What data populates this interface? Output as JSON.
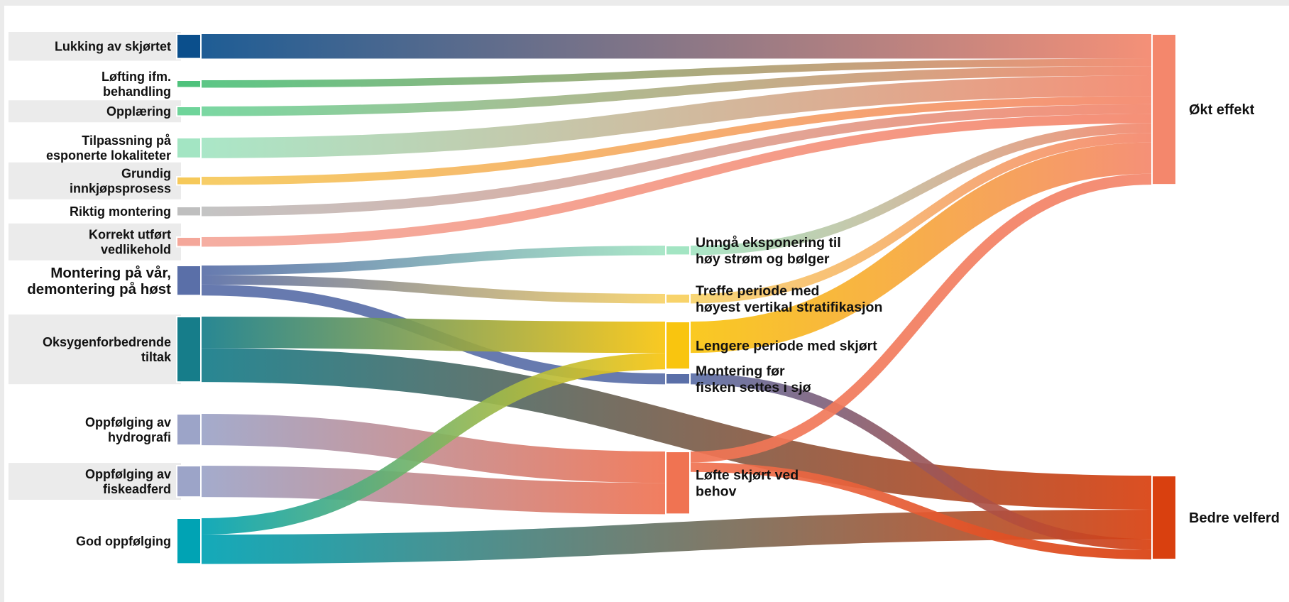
{
  "chart_data": {
    "type": "sankey",
    "title": "",
    "colors": {
      "lukking": "#0b4f8c",
      "lofting": "#4fc27c",
      "opplaering": "#6fd49a",
      "tilpassning": "#a3e5c3",
      "innkjop": "#f6c95a",
      "riktig": "#bfbfbf",
      "korrekt": "#f4a79a",
      "montering_var": "#5a6fa8",
      "oksygen": "#167d8a",
      "hydrografi": "#9ca4c8",
      "fiskeadferd": "#9ca4c8",
      "god": "#00a3b4",
      "unnga": "#a3e5c3",
      "treffe": "#f8d36a",
      "lengere": "#f9c50f",
      "montering_for": "#5a6fa8",
      "lofte": "#f07352",
      "okt": "#f4876c",
      "velferd": "#d9400f",
      "label_band": "#ebebeb",
      "node_stroke": "#ffffff"
    },
    "nodes": [
      {
        "id": "lukking",
        "label_lines": [
          "Lukking av skjørtet"
        ],
        "column": 0,
        "band": true
      },
      {
        "id": "lofting",
        "label_lines": [
          "Løfting ifm.",
          "behandling"
        ],
        "column": 0,
        "band": false
      },
      {
        "id": "opplaering",
        "label_lines": [
          "Opplæring"
        ],
        "column": 0,
        "band": true
      },
      {
        "id": "tilpassning",
        "label_lines": [
          "Tilpassning på",
          "esponerte lokaliteter"
        ],
        "column": 0,
        "band": false
      },
      {
        "id": "innkjop",
        "label_lines": [
          "Grundig",
          "innkjøpsprosess"
        ],
        "column": 0,
        "band": true
      },
      {
        "id": "riktig",
        "label_lines": [
          "Riktig montering"
        ],
        "column": 0,
        "band": false
      },
      {
        "id": "korrekt",
        "label_lines": [
          "Korrekt utført",
          "vedlikehold"
        ],
        "column": 0,
        "band": true
      },
      {
        "id": "montering_var",
        "label_lines": [
          "Montering på vår,",
          "demontering på høst"
        ],
        "column": 0,
        "band": false,
        "large": true
      },
      {
        "id": "oksygen",
        "label_lines": [
          "Oksygenforbedrende",
          "tiltak"
        ],
        "column": 0,
        "band": true
      },
      {
        "id": "hydrografi",
        "label_lines": [
          "Oppfølging av",
          "hydrografi"
        ],
        "column": 0,
        "band": false
      },
      {
        "id": "fiskeadferd",
        "label_lines": [
          "Oppfølging av",
          "fiskeadferd"
        ],
        "column": 0,
        "band": true
      },
      {
        "id": "god",
        "label_lines": [
          "God oppfølging"
        ],
        "column": 0,
        "band": false
      },
      {
        "id": "unnga",
        "label_lines": [
          "Unngå eksponering til",
          "høy strøm og bølger"
        ],
        "column": 1
      },
      {
        "id": "treffe",
        "label_lines": [
          "Treffe periode med",
          "høyest vertikal stratifikasjon"
        ],
        "column": 1
      },
      {
        "id": "lengere",
        "label_lines": [
          "Lengere periode med skjørt"
        ],
        "column": 1
      },
      {
        "id": "montering_for",
        "label_lines": [
          "Montering før",
          "fisken settes i sjø"
        ],
        "column": 1
      },
      {
        "id": "lofte",
        "label_lines": [
          "Løfte skjørt ved",
          "behov"
        ],
        "column": 1
      },
      {
        "id": "okt",
        "label_lines": [
          "Økt effekt"
        ],
        "column": 2
      },
      {
        "id": "velferd",
        "label_lines": [
          "Bedre velferd"
        ],
        "column": 2
      }
    ],
    "links": [
      {
        "source": "lukking",
        "target": "okt",
        "value": 3.6
      },
      {
        "source": "lofting",
        "target": "okt",
        "value": 1.1
      },
      {
        "source": "opplaering",
        "target": "okt",
        "value": 1.4
      },
      {
        "source": "tilpassning",
        "target": "okt",
        "value": 3.0
      },
      {
        "source": "innkjop",
        "target": "okt",
        "value": 1.2
      },
      {
        "source": "riktig",
        "target": "okt",
        "value": 1.4
      },
      {
        "source": "korrekt",
        "target": "okt",
        "value": 1.4
      },
      {
        "source": "montering_var",
        "target": "unnga",
        "value": 1.4
      },
      {
        "source": "montering_var",
        "target": "treffe",
        "value": 1.4
      },
      {
        "source": "montering_var",
        "target": "montering_for",
        "value": 1.6
      },
      {
        "source": "oksygen",
        "target": "lengere",
        "value": 4.6
      },
      {
        "source": "oksygen",
        "target": "velferd",
        "value": 5.0
      },
      {
        "source": "hydrografi",
        "target": "lofte",
        "value": 4.6
      },
      {
        "source": "fiskeadferd",
        "target": "lofte",
        "value": 4.6
      },
      {
        "source": "god",
        "target": "lengere",
        "value": 2.4
      },
      {
        "source": "god",
        "target": "velferd",
        "value": 4.3
      },
      {
        "source": "unnga",
        "target": "okt",
        "value": 1.4
      },
      {
        "source": "treffe",
        "target": "okt",
        "value": 1.4
      },
      {
        "source": "lengere",
        "target": "okt",
        "value": 4.6
      },
      {
        "source": "montering_for",
        "target": "velferd",
        "value": 1.6
      },
      {
        "source": "lofte",
        "target": "okt",
        "value": 1.6
      },
      {
        "source": "lofte",
        "target": "velferd",
        "value": 1.4
      }
    ]
  }
}
